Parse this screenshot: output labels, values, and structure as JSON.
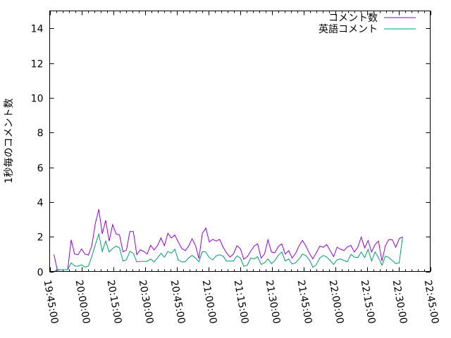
{
  "chart_data": {
    "type": "line",
    "title": "",
    "xlabel": "",
    "ylabel": "1秒毎のコメント数",
    "xlim": [
      "19:45:00",
      "22:45:00"
    ],
    "ylim": [
      0,
      15
    ],
    "x_ticks": [
      "19:45:00",
      "20:00:00",
      "20:15:00",
      "20:30:00",
      "20:45:00",
      "21:00:00",
      "21:15:00",
      "21:30:00",
      "21:45:00",
      "22:00:00",
      "22:15:00",
      "22:30:00",
      "22:45:00"
    ],
    "y_ticks": [
      0,
      2,
      4,
      6,
      8,
      10,
      12,
      14
    ],
    "grid": false,
    "legend_position": "top-right",
    "x_start": "19:47:00",
    "x_interval": "00:01:38",
    "series": [
      {
        "name": "コメント数",
        "color": "#9400d3",
        "values": [
          0.98,
          0.07,
          0.1,
          0.1,
          0.1,
          1.82,
          1.0,
          0.97,
          1.3,
          1.0,
          0.95,
          1.5,
          2.77,
          3.58,
          2.16,
          2.95,
          1.75,
          2.7,
          2.16,
          2.1,
          1.13,
          1.22,
          2.3,
          2.3,
          0.97,
          1.24,
          1.16,
          1.0,
          1.51,
          1.24,
          1.48,
          1.93,
          1.48,
          2.2,
          1.93,
          2.1,
          1.7,
          1.33,
          1.2,
          1.45,
          1.88,
          1.5,
          0.74,
          2.2,
          2.5,
          1.7,
          1.85,
          1.75,
          1.85,
          1.4,
          1.07,
          0.83,
          1.0,
          1.48,
          1.31,
          0.7,
          0.85,
          1.17,
          1.46,
          1.59,
          0.77,
          1.0,
          1.82,
          1.12,
          1.08,
          1.44,
          1.59,
          1.0,
          1.2,
          0.77,
          1.04,
          1.48,
          1.78,
          1.46,
          1.04,
          0.72,
          1.08,
          1.46,
          1.39,
          1.55,
          1.2,
          0.85,
          1.39,
          1.28,
          1.2,
          1.42,
          1.5,
          1.12,
          1.39,
          1.98,
          1.35,
          1.78,
          1.12,
          1.55,
          1.75,
          0.6,
          1.48,
          1.84,
          1.82,
          1.39,
          1.89,
          2.0
        ]
      },
      {
        "name": "英語コメント",
        "color": "#009e73",
        "values": [
          0,
          0.1,
          0.1,
          0.1,
          0.1,
          0.5,
          0.31,
          0.31,
          0.38,
          0.25,
          0.31,
          0.88,
          1.55,
          2.16,
          1.15,
          1.75,
          1.12,
          1.32,
          1.46,
          1.36,
          0.6,
          0.67,
          1.15,
          1.05,
          0.55,
          0.58,
          0.58,
          0.58,
          0.72,
          0.55,
          0.78,
          1.04,
          0.83,
          1.15,
          1.05,
          1.28,
          0.67,
          0.55,
          0.55,
          0.78,
          0.92,
          0.78,
          0.55,
          1.15,
          1.12,
          0.8,
          0.67,
          0.9,
          0.96,
          0.88,
          0.6,
          0.6,
          0.6,
          0.9,
          0.77,
          0.3,
          0.36,
          0.77,
          0.72,
          0.85,
          0.4,
          0.5,
          0.72,
          0.45,
          0.63,
          0.94,
          1.12,
          0.6,
          0.72,
          0.43,
          0.5,
          0.72,
          1.0,
          0.9,
          0.67,
          0.24,
          0.4,
          0.77,
          0.92,
          0.83,
          0.63,
          0.4,
          0.67,
          0.72,
          0.63,
          0.55,
          0.98,
          0.83,
          0.8,
          1.12,
          0.8,
          1.28,
          0.6,
          1.12,
          0.8,
          0.36,
          0.88,
          0.8,
          0.63,
          0.45,
          0.5,
          2.0
        ]
      }
    ]
  }
}
